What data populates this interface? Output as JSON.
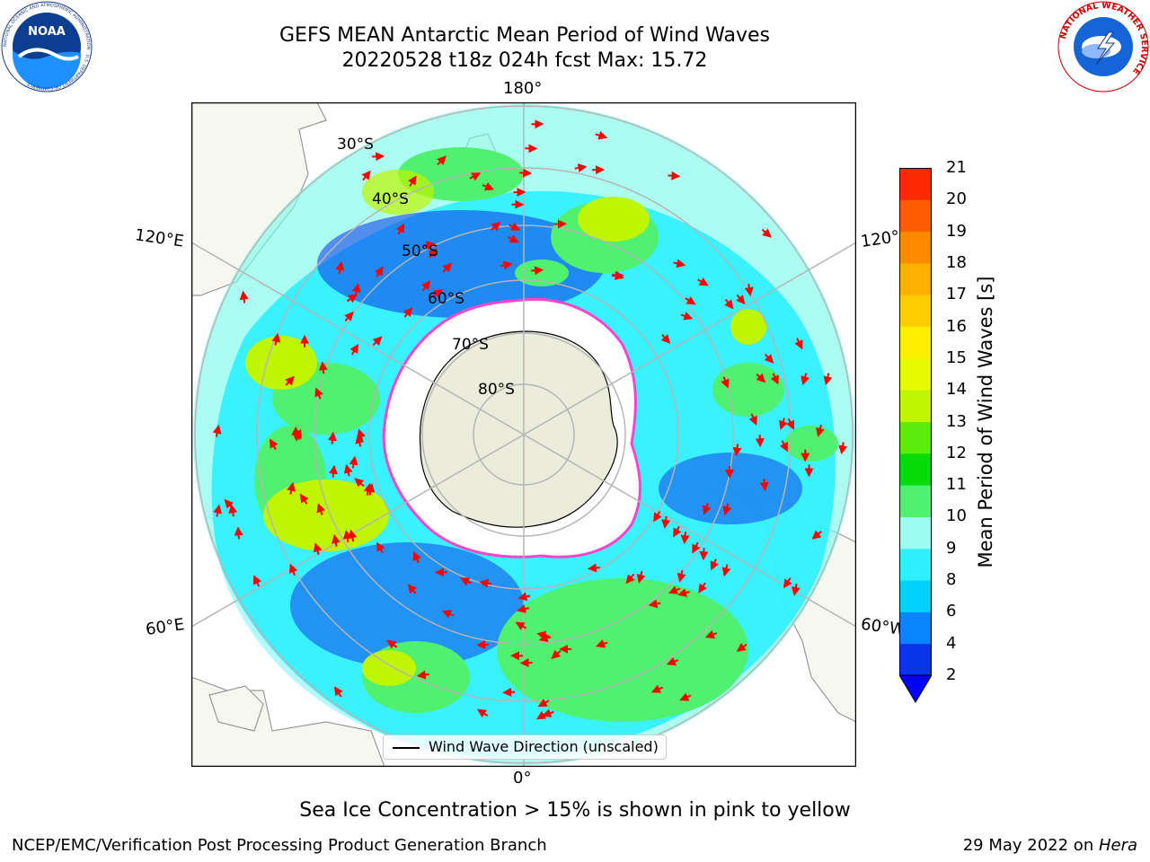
{
  "header": {
    "title_line1": "GEFS MEAN Antarctic Mean Period of Wind Waves",
    "title_line2": "20220528 t18z 024h fcst   Max: 15.72"
  },
  "logos": {
    "noaa_text": "NOAA",
    "noaa_ring_text": "NATIONAL OCEANIC AND ATMOSPHERIC ADMINISTRATION · U.S. DEPARTMENT OF COMMERCE",
    "nws_ring_text": "NATIONAL WEATHER SERVICE"
  },
  "map": {
    "longitude_labels": {
      "top": "180°",
      "bottom": "0°",
      "left_upper": "120°E",
      "left_lower": "60°E",
      "right_upper": "120°",
      "right_lower": "60°W"
    },
    "latitude_labels": [
      "30°S",
      "40°S",
      "50°S",
      "60°S",
      "70°S",
      "80°S"
    ],
    "legend_label": "Wind Wave Direction (unscaled)"
  },
  "colorbar": {
    "label": "Mean Period of Wind Waves [s]",
    "ticks": [
      "2",
      "4",
      "6",
      "8",
      "9",
      "10",
      "11",
      "12",
      "13",
      "14",
      "15",
      "16",
      "17",
      "18",
      "19",
      "20",
      "21"
    ],
    "colors": [
      "#0a34e8",
      "#0a84ff",
      "#00d2ff",
      "#2ef0ff",
      "#9cfdf0",
      "#50f070",
      "#08dc08",
      "#5aec0a",
      "#bff500",
      "#e6fa00",
      "#ffee00",
      "#ffcc00",
      "#ffb000",
      "#ff8a00",
      "#ff5c00",
      "#ff2a00",
      "#ff0000"
    ],
    "extend_color": "#0000ff"
  },
  "palette": {
    "land": "#ececdc",
    "ice": "#ffffff",
    "ice_edge": "#ff44cc",
    "graticule": "#b5b5b5",
    "arrow": "#ff0000"
  },
  "caption": "Sea Ice Concentration > 15% is shown in pink to yellow",
  "footer": {
    "left": "NCEP/EMC/Verification Post Processing Product Generation Branch",
    "right_date": "29 May 2022 on ",
    "right_host": "Hera"
  }
}
